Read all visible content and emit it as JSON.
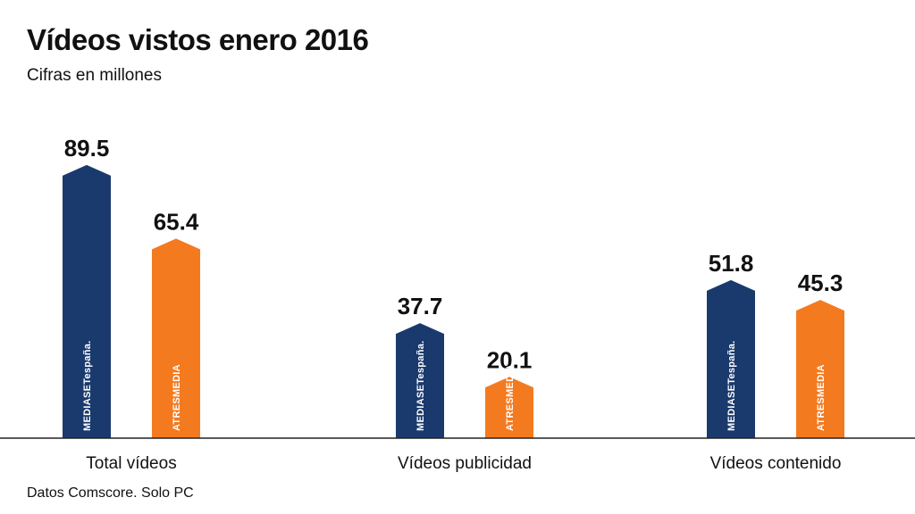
{
  "header": {
    "title": "Vídeos vistos enero 2016",
    "subtitle": "Cifras en millones"
  },
  "footer": {
    "source": "Datos Comscore. Solo PC"
  },
  "chart_data": {
    "type": "bar",
    "title": "Vídeos vistos enero 2016",
    "subtitle": "Cifras en millones",
    "categories": [
      "Total vídeos",
      "Vídeos publicidad",
      "Vídeos contenido"
    ],
    "series": [
      {
        "name": "MEDIASETespaña.",
        "color": "#1a3a6e",
        "values": [
          89.5,
          37.7,
          51.8
        ]
      },
      {
        "name": "ATRESMEDIA",
        "color": "#f47a1f",
        "values": [
          65.4,
          20.1,
          45.3
        ]
      }
    ],
    "ylim": [
      0,
      100
    ],
    "grid": false,
    "legend": "none"
  }
}
